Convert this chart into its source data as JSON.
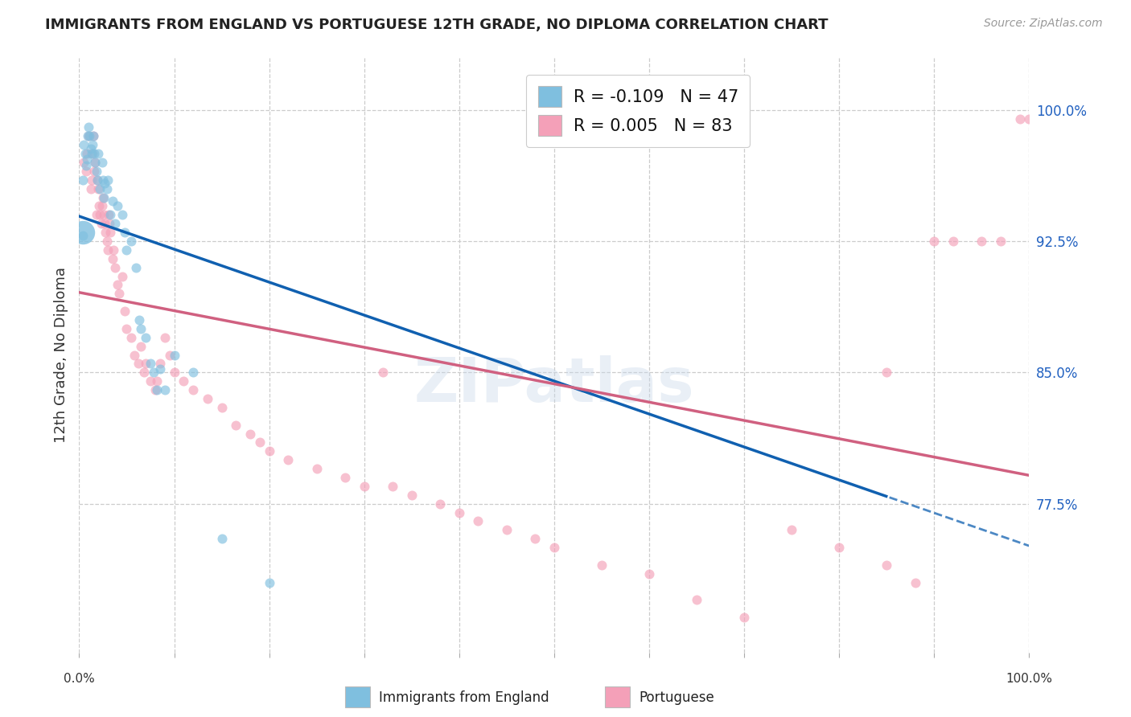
{
  "title": "IMMIGRANTS FROM ENGLAND VS PORTUGUESE 12TH GRADE, NO DIPLOMA CORRELATION CHART",
  "source": "Source: ZipAtlas.com",
  "ylabel": "12th Grade, No Diploma",
  "y_ticks": [
    0.775,
    0.85,
    0.925,
    1.0
  ],
  "y_tick_labels": [
    "77.5%",
    "85.0%",
    "92.5%",
    "100.0%"
  ],
  "xlim": [
    0.0,
    1.0
  ],
  "ylim": [
    0.69,
    1.03
  ],
  "legend_eng_label": "Immigrants from England",
  "legend_por_label": "Portuguese",
  "eng_r_text": "R = -0.109",
  "eng_n_text": "N = 47",
  "por_r_text": "R = 0.005",
  "por_n_text": "N = 83",
  "eng_color": "#7fbfdf",
  "por_color": "#f4a0b8",
  "eng_trend_color": "#1060b0",
  "por_trend_color": "#d06080",
  "r_value_color": "#2060c0",
  "background_color": "#ffffff",
  "grid_color": "#cccccc",
  "eng_x": [
    0.004,
    0.004,
    0.005,
    0.006,
    0.007,
    0.008,
    0.009,
    0.01,
    0.011,
    0.012,
    0.013,
    0.014,
    0.015,
    0.016,
    0.017,
    0.018,
    0.019,
    0.02,
    0.022,
    0.024,
    0.025,
    0.026,
    0.027,
    0.029,
    0.03,
    0.033,
    0.035,
    0.038,
    0.04,
    0.045,
    0.048,
    0.05,
    0.055,
    0.06,
    0.063,
    0.065,
    0.07,
    0.075,
    0.078,
    0.082,
    0.085,
    0.09,
    0.1,
    0.12,
    0.15,
    0.2,
    0.6
  ],
  "eng_y": [
    0.96,
    0.928,
    0.98,
    0.975,
    0.968,
    0.972,
    0.985,
    0.99,
    0.985,
    0.978,
    0.975,
    0.98,
    0.985,
    0.975,
    0.97,
    0.965,
    0.96,
    0.975,
    0.955,
    0.97,
    0.96,
    0.95,
    0.958,
    0.955,
    0.96,
    0.94,
    0.948,
    0.935,
    0.945,
    0.94,
    0.93,
    0.92,
    0.925,
    0.91,
    0.88,
    0.875,
    0.87,
    0.855,
    0.85,
    0.84,
    0.852,
    0.84,
    0.86,
    0.85,
    0.755,
    0.73,
    0.995
  ],
  "eng_large_x": [
    0.004
  ],
  "eng_large_y": [
    0.93
  ],
  "por_x": [
    0.005,
    0.007,
    0.008,
    0.01,
    0.012,
    0.013,
    0.014,
    0.015,
    0.016,
    0.017,
    0.018,
    0.019,
    0.02,
    0.021,
    0.022,
    0.023,
    0.024,
    0.025,
    0.026,
    0.027,
    0.028,
    0.029,
    0.03,
    0.031,
    0.032,
    0.033,
    0.035,
    0.036,
    0.038,
    0.04,
    0.042,
    0.045,
    0.048,
    0.05,
    0.055,
    0.058,
    0.062,
    0.065,
    0.068,
    0.07,
    0.075,
    0.08,
    0.082,
    0.085,
    0.09,
    0.095,
    0.1,
    0.11,
    0.12,
    0.135,
    0.15,
    0.165,
    0.18,
    0.19,
    0.2,
    0.22,
    0.25,
    0.28,
    0.3,
    0.33,
    0.35,
    0.38,
    0.4,
    0.42,
    0.45,
    0.48,
    0.5,
    0.55,
    0.6,
    0.65,
    0.7,
    0.75,
    0.8,
    0.85,
    0.88,
    0.9,
    0.92,
    0.95,
    0.97,
    0.99,
    1.0,
    0.32,
    0.85
  ],
  "por_y": [
    0.97,
    0.965,
    0.975,
    0.985,
    0.955,
    0.96,
    0.975,
    0.985,
    0.965,
    0.97,
    0.94,
    0.96,
    0.955,
    0.945,
    0.94,
    0.935,
    0.945,
    0.95,
    0.94,
    0.935,
    0.93,
    0.925,
    0.92,
    0.94,
    0.935,
    0.93,
    0.915,
    0.92,
    0.91,
    0.9,
    0.895,
    0.905,
    0.885,
    0.875,
    0.87,
    0.86,
    0.855,
    0.865,
    0.85,
    0.855,
    0.845,
    0.84,
    0.845,
    0.855,
    0.87,
    0.86,
    0.85,
    0.845,
    0.84,
    0.835,
    0.83,
    0.82,
    0.815,
    0.81,
    0.805,
    0.8,
    0.795,
    0.79,
    0.785,
    0.785,
    0.78,
    0.775,
    0.77,
    0.765,
    0.76,
    0.755,
    0.75,
    0.74,
    0.735,
    0.72,
    0.71,
    0.76,
    0.75,
    0.74,
    0.73,
    0.925,
    0.925,
    0.925,
    0.925,
    0.995,
    0.995,
    0.85,
    0.85
  ],
  "dot_size": 75,
  "dot_alpha": 0.65,
  "large_dot_size": 450,
  "watermark_text": "ZIPatlas",
  "watermark_color": "#c8d8ea",
  "watermark_alpha": 0.4,
  "watermark_fontsize": 55
}
